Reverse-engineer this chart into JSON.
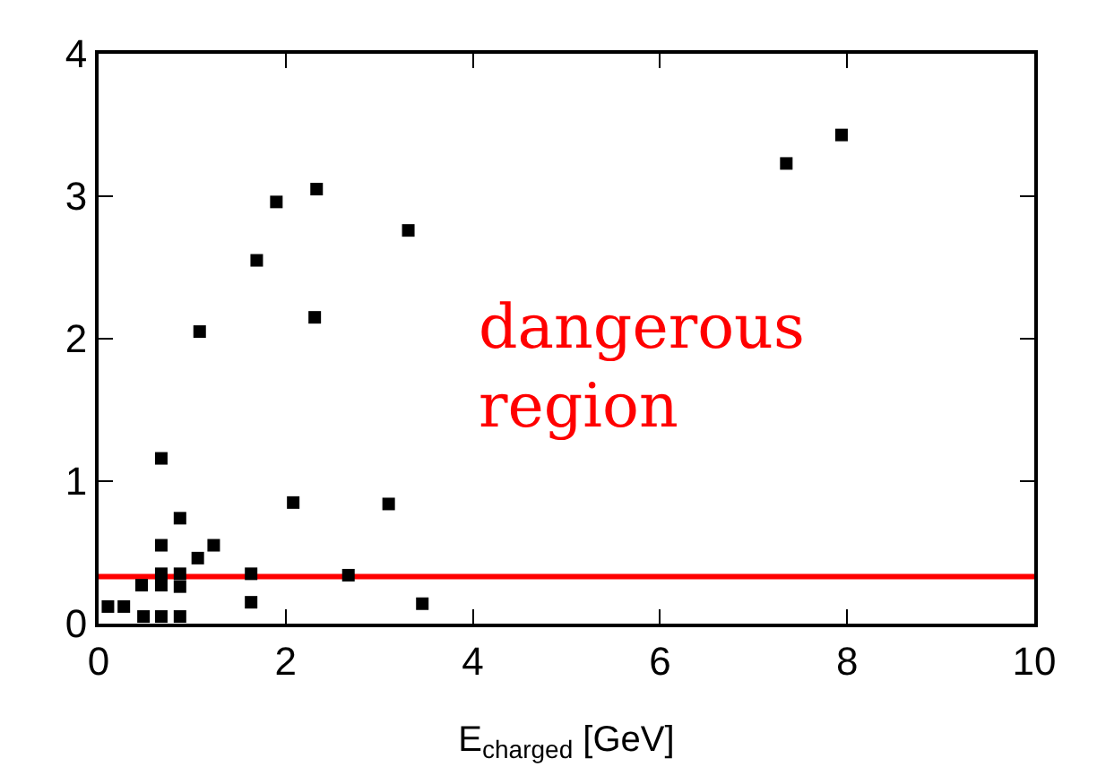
{
  "chart_data": {
    "type": "scatter",
    "xlabel": "E$_{charged}$ [GeV]",
    "x": [
      2.33,
      1.9,
      3.31,
      1.69,
      2.31,
      1.08,
      0.67,
      0.87,
      2.08,
      3.1,
      0.67,
      1.23,
      1.06,
      0.67,
      0.87,
      1.63,
      2.67,
      0.46,
      0.67,
      0.87,
      1.63,
      3.46,
      0.27,
      0.1,
      0.48,
      0.67,
      0.87,
      7.94,
      7.35
    ],
    "values": [
      3.05,
      2.96,
      2.76,
      2.55,
      2.15,
      2.05,
      1.16,
      0.74,
      0.85,
      0.84,
      0.55,
      0.55,
      0.46,
      0.35,
      0.35,
      0.35,
      0.34,
      0.27,
      0.27,
      0.26,
      0.15,
      0.14,
      0.12,
      0.12,
      0.05,
      0.05,
      0.05,
      3.43,
      3.23
    ],
    "color": "#000000",
    "marker": "square",
    "xlim": [
      0,
      10
    ],
    "ylim": [
      0,
      4
    ],
    "xticks": [
      0,
      2,
      4,
      6,
      8,
      10
    ],
    "yticks": [
      0,
      1,
      2,
      3,
      4
    ],
    "grid": false,
    "legend": false,
    "ref_lines": [
      {
        "axis": "y",
        "value": 0.33,
        "color": "#ff0000"
      }
    ],
    "annotations": [
      "dangerous region"
    ]
  }
}
